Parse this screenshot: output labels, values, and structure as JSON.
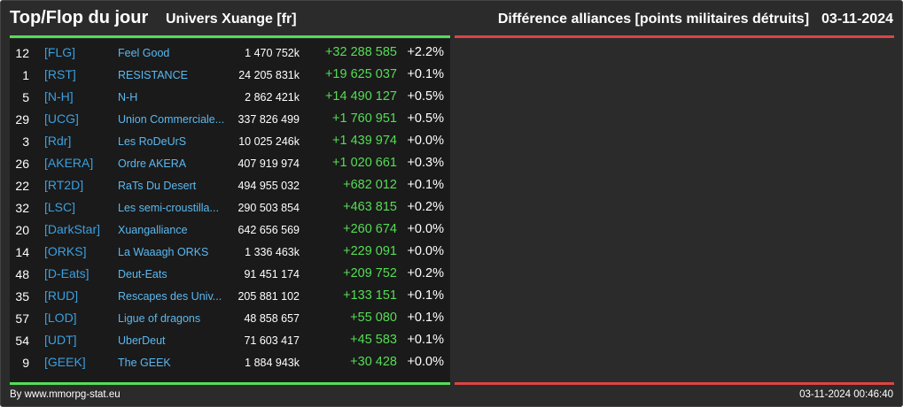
{
  "header": {
    "title": "Top/Flop du jour",
    "universe": "Univers Xuange [fr]",
    "ranking_label": "Différence alliances [points militaires détruits]",
    "date": "03-11-2024"
  },
  "colors": {
    "background": "#2b2b2b",
    "panel": "#1a1a1a",
    "top_accent": "#55dd55",
    "flop_accent": "#dd4444",
    "tag": "#3aa0e0",
    "name": "#5ab8f0",
    "positive_diff": "#55dd55"
  },
  "columns": [
    "rank",
    "tag",
    "name",
    "points",
    "diff",
    "percent"
  ],
  "rows": [
    {
      "rank": "12",
      "tag": "[FLG]",
      "name": "Feel Good",
      "points": "1 470 752k",
      "diff": "+32 288 585",
      "percent": "+2.2%"
    },
    {
      "rank": "1",
      "tag": "[RST]",
      "name": "RESISTANCE",
      "points": "24 205 831k",
      "diff": "+19 625 037",
      "percent": "+0.1%"
    },
    {
      "rank": "5",
      "tag": "[N-H]",
      "name": "N-H",
      "points": "2 862 421k",
      "diff": "+14 490 127",
      "percent": "+0.5%"
    },
    {
      "rank": "29",
      "tag": "[UCG]",
      "name": "Union Commerciale...",
      "points": "337 826 499",
      "diff": "+1 760 951",
      "percent": "+0.5%"
    },
    {
      "rank": "3",
      "tag": "[Rdr]",
      "name": "Les RoDeUrS",
      "points": "10 025 246k",
      "diff": "+1 439 974",
      "percent": "+0.0%"
    },
    {
      "rank": "26",
      "tag": "[AKERA]",
      "name": "Ordre AKERA",
      "points": "407 919 974",
      "diff": "+1 020 661",
      "percent": "+0.3%"
    },
    {
      "rank": "22",
      "tag": "[RT2D]",
      "name": "RaTs Du Desert",
      "points": "494 955 032",
      "diff": "+682 012",
      "percent": "+0.1%"
    },
    {
      "rank": "32",
      "tag": "[LSC]",
      "name": "Les semi-croustilla...",
      "points": "290 503 854",
      "diff": "+463 815",
      "percent": "+0.2%"
    },
    {
      "rank": "20",
      "tag": "[DarkStar]",
      "name": "Xuangalliance",
      "points": "642 656 569",
      "diff": "+260 674",
      "percent": "+0.0%"
    },
    {
      "rank": "14",
      "tag": "[ORKS]",
      "name": "La Waaagh ORKS",
      "points": "1 336 463k",
      "diff": "+229 091",
      "percent": "+0.0%"
    },
    {
      "rank": "48",
      "tag": "[D-Eats]",
      "name": "Deut-Eats",
      "points": "91 451 174",
      "diff": "+209 752",
      "percent": "+0.2%"
    },
    {
      "rank": "35",
      "tag": "[RUD]",
      "name": "Rescapes des Univ...",
      "points": "205 881 102",
      "diff": "+133 151",
      "percent": "+0.1%"
    },
    {
      "rank": "57",
      "tag": "[LOD]",
      "name": "Ligue of dragons",
      "points": "48 858 657",
      "diff": "+55 080",
      "percent": "+0.1%"
    },
    {
      "rank": "54",
      "tag": "[UDT]",
      "name": "UberDeut",
      "points": "71 603 417",
      "diff": "+45 583",
      "percent": "+0.1%"
    },
    {
      "rank": "9",
      "tag": "[GEEK]",
      "name": "The GEEK",
      "points": "1 884 943k",
      "diff": "+30 428",
      "percent": "+0.0%"
    }
  ],
  "footer": {
    "source": "By www.mmorpg-stat.eu",
    "timestamp": "03-11-2024 00:46:40"
  }
}
